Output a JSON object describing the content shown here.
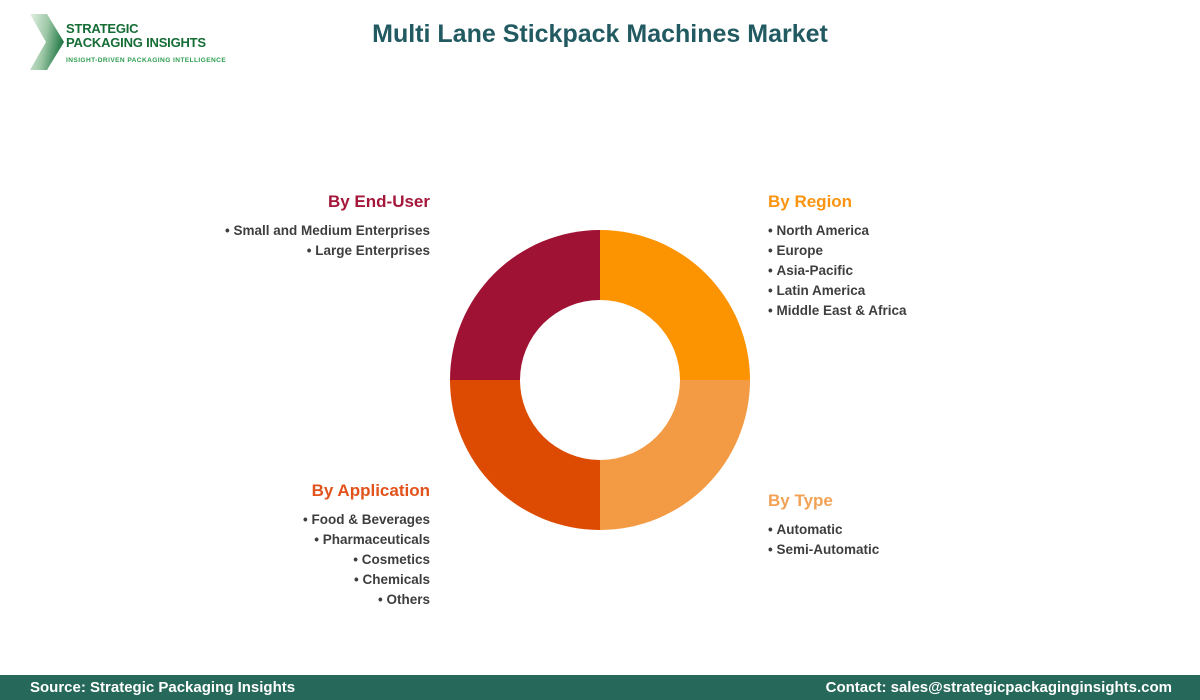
{
  "header": {
    "logo": {
      "line1": "STRATEGIC",
      "line2": "PACKAGING INSIGHTS",
      "tagline": "INSIGHT-DRIVEN PACKAGING INTELLIGENCE"
    },
    "title": "Multi Lane Stickpack Machines Market"
  },
  "sections": {
    "end_user": {
      "heading": "By End-User",
      "color": "#a5173a",
      "items": [
        "Small and Medium Enterprises",
        "Large Enterprises"
      ]
    },
    "region": {
      "heading": "By Region",
      "color": "#fa9410",
      "items": [
        "North America",
        "Europe",
        "Asia-Pacific",
        "Latin America",
        "Middle East & Africa"
      ]
    },
    "application": {
      "heading": "By Application",
      "color": "#e2521b",
      "items": [
        "Food & Beverages",
        "Pharmaceuticals",
        "Cosmetics",
        "Chemicals",
        "Others"
      ]
    },
    "type": {
      "heading": "By Type",
      "color": "#f3a155",
      "items": [
        "Automatic",
        "Semi-Automatic"
      ]
    }
  },
  "chart_data": {
    "type": "pie",
    "subtype": "donut",
    "title": "Multi Lane Stickpack Machines Market",
    "segments": [
      {
        "label": "By Region",
        "value": 25,
        "color": "#fc9300"
      },
      {
        "label": "By Type",
        "value": 25,
        "color": "#f39a45"
      },
      {
        "label": "By Application",
        "value": 25,
        "color": "#dd4a02"
      },
      {
        "label": "By End-User",
        "value": 25,
        "color": "#a01234"
      }
    ],
    "start_angle_deg": 0,
    "inner_radius_ratio": 0.533,
    "legend_position": "corners"
  },
  "colors": {
    "title_text": "#225a61",
    "footer_bg": "#26685a",
    "logo_green_dark": "#156c35",
    "logo_green_light": "#2e9e50",
    "body_text": "#3e3e3e"
  },
  "footer": {
    "source": "Source: Strategic Packaging Insights",
    "contact": "Contact: sales@strategicpackaginginsights.com"
  }
}
